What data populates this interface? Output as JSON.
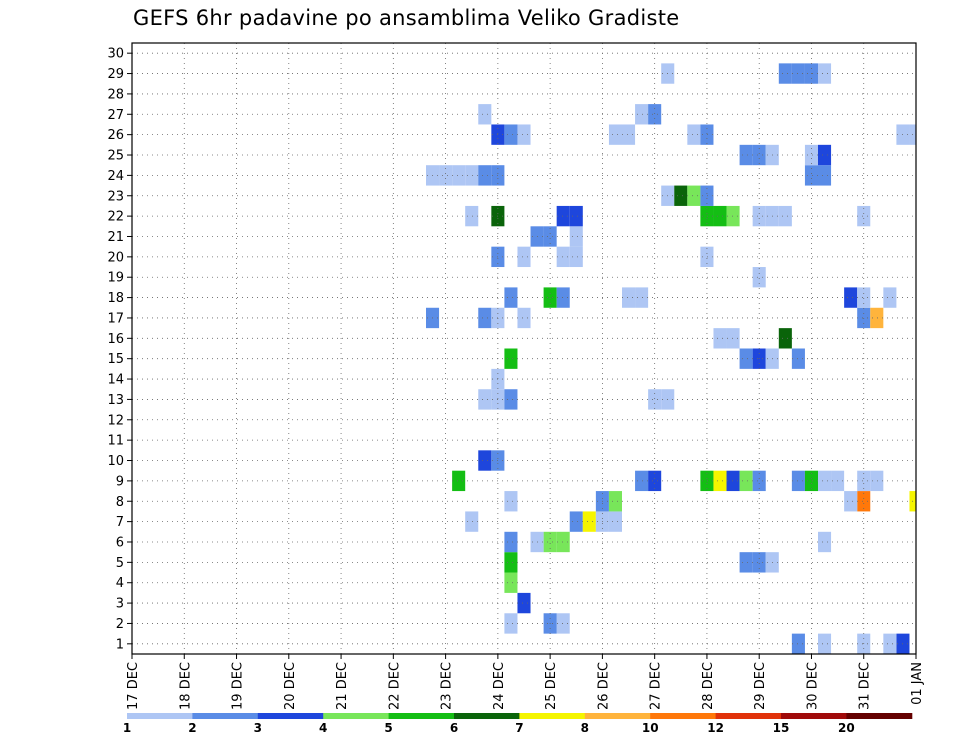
{
  "chart_data": {
    "type": "heatmap",
    "title": "GEFS 6hr padavine po ansamblima Veliko Gradiste",
    "x_tick_labels": [
      "17 DEC",
      "18 DEC",
      "19 DEC",
      "20 DEC",
      "21 DEC",
      "22 DEC",
      "23 DEC",
      "24 DEC",
      "25 DEC",
      "26 DEC",
      "27 DEC",
      "28 DEC",
      "29 DEC",
      "30 DEC",
      "31 DEC",
      "01 JAN"
    ],
    "x_units": "6-hour steps from 17 DEC 00Z (4 per day)",
    "x_range": [
      0,
      60
    ],
    "y_tick_labels": [
      "1",
      "2",
      "3",
      "4",
      "5",
      "6",
      "7",
      "8",
      "9",
      "10",
      "11",
      "12",
      "13",
      "14",
      "15",
      "16",
      "17",
      "18",
      "19",
      "20",
      "21",
      "22",
      "23",
      "24",
      "25",
      "26",
      "27",
      "28",
      "29",
      "30"
    ],
    "y_range": [
      0.5,
      30.5
    ],
    "grid": true,
    "legend_position": "bottom",
    "colorbar": {
      "labels": [
        "1",
        "2",
        "3",
        "4",
        "5",
        "6",
        "7",
        "8",
        "10",
        "12",
        "15",
        "20"
      ],
      "colors": [
        "#aec6f4",
        "#5a8ce6",
        "#1e46dc",
        "#78e65a",
        "#14be14",
        "#0a640a",
        "#f5f500",
        "#ffb43c",
        "#ff780a",
        "#e1320a",
        "#a00a0a",
        "#640000"
      ]
    },
    "cells": [
      [
        59,
        1,
        3
      ],
      [
        58,
        1,
        1
      ],
      [
        56,
        1,
        1
      ],
      [
        53,
        1,
        1
      ],
      [
        51,
        1,
        2
      ],
      [
        33,
        2,
        1
      ],
      [
        32,
        2,
        2
      ],
      [
        29,
        2,
        1
      ],
      [
        30,
        3,
        3
      ],
      [
        29,
        4,
        4
      ],
      [
        29,
        5,
        5
      ],
      [
        48,
        5,
        2
      ],
      [
        47,
        5,
        2
      ],
      [
        49,
        5,
        1
      ],
      [
        29,
        6,
        2
      ],
      [
        32,
        6,
        4
      ],
      [
        33,
        6,
        4
      ],
      [
        31,
        6,
        1
      ],
      [
        53,
        6,
        1
      ],
      [
        26,
        7,
        1
      ],
      [
        34,
        7,
        2
      ],
      [
        35,
        7,
        7
      ],
      [
        36,
        7,
        1
      ],
      [
        37,
        7,
        1
      ],
      [
        29,
        8,
        1
      ],
      [
        36,
        8,
        2
      ],
      [
        37,
        8,
        4
      ],
      [
        56,
        8,
        9
      ],
      [
        55,
        8,
        1
      ],
      [
        60,
        8,
        7
      ],
      [
        25,
        9,
        5
      ],
      [
        39,
        9,
        2
      ],
      [
        40,
        9,
        3
      ],
      [
        44,
        9,
        5
      ],
      [
        45,
        9,
        7
      ],
      [
        46,
        9,
        3
      ],
      [
        47,
        9,
        4
      ],
      [
        48,
        9,
        2
      ],
      [
        51,
        9,
        2
      ],
      [
        52,
        9,
        5
      ],
      [
        53,
        9,
        1
      ],
      [
        54,
        9,
        1
      ],
      [
        56,
        9,
        1
      ],
      [
        57,
        9,
        1
      ],
      [
        27,
        10,
        3
      ],
      [
        28,
        10,
        2
      ],
      [
        27,
        13,
        1
      ],
      [
        28,
        13,
        1
      ],
      [
        29,
        13,
        2
      ],
      [
        40,
        13,
        1
      ],
      [
        41,
        13,
        1
      ],
      [
        28,
        14,
        1
      ],
      [
        29,
        15,
        5
      ],
      [
        47,
        15,
        2
      ],
      [
        48,
        15,
        3
      ],
      [
        49,
        15,
        1
      ],
      [
        51,
        15,
        2
      ],
      [
        45,
        16,
        1
      ],
      [
        46,
        16,
        1
      ],
      [
        50,
        16,
        6
      ],
      [
        23,
        17,
        2
      ],
      [
        27,
        17,
        2
      ],
      [
        28,
        17,
        1
      ],
      [
        30,
        17,
        1
      ],
      [
        56,
        17,
        2
      ],
      [
        57,
        17,
        8
      ],
      [
        29,
        18,
        2
      ],
      [
        32,
        18,
        5
      ],
      [
        33,
        18,
        2
      ],
      [
        38,
        18,
        1
      ],
      [
        39,
        18,
        1
      ],
      [
        55,
        18,
        3
      ],
      [
        56,
        18,
        1
      ],
      [
        58,
        18,
        1
      ],
      [
        48,
        19,
        1
      ],
      [
        28,
        20,
        2
      ],
      [
        30,
        20,
        1
      ],
      [
        33,
        20,
        1
      ],
      [
        34,
        20,
        1
      ],
      [
        44,
        20,
        1
      ],
      [
        31,
        21,
        2
      ],
      [
        32,
        21,
        2
      ],
      [
        34,
        21,
        1
      ],
      [
        26,
        22,
        1
      ],
      [
        28,
        22,
        6
      ],
      [
        33,
        22,
        3
      ],
      [
        34,
        22,
        3
      ],
      [
        44,
        22,
        5
      ],
      [
        45,
        22,
        5
      ],
      [
        46,
        22,
        4
      ],
      [
        48,
        22,
        1
      ],
      [
        49,
        22,
        1
      ],
      [
        50,
        22,
        1
      ],
      [
        56,
        22,
        1
      ],
      [
        41,
        23,
        1
      ],
      [
        42,
        23,
        6
      ],
      [
        43,
        23,
        4
      ],
      [
        44,
        23,
        2
      ],
      [
        23,
        24,
        1
      ],
      [
        24,
        24,
        1
      ],
      [
        25,
        24,
        1
      ],
      [
        26,
        24,
        1
      ],
      [
        27,
        24,
        2
      ],
      [
        28,
        24,
        2
      ],
      [
        52,
        24,
        2
      ],
      [
        53,
        24,
        2
      ],
      [
        47,
        25,
        2
      ],
      [
        48,
        25,
        2
      ],
      [
        49,
        25,
        1
      ],
      [
        52,
        25,
        1
      ],
      [
        53,
        25,
        3
      ],
      [
        28,
        26,
        3
      ],
      [
        29,
        26,
        2
      ],
      [
        30,
        26,
        1
      ],
      [
        37,
        26,
        1
      ],
      [
        38,
        26,
        1
      ],
      [
        43,
        26,
        1
      ],
      [
        44,
        26,
        2
      ],
      [
        59,
        26,
        1
      ],
      [
        60,
        26,
        1
      ],
      [
        27,
        27,
        1
      ],
      [
        39,
        27,
        1
      ],
      [
        40,
        27,
        2
      ],
      [
        41,
        29,
        1
      ],
      [
        50,
        29,
        2
      ],
      [
        51,
        29,
        2
      ],
      [
        52,
        29,
        2
      ],
      [
        53,
        29,
        1
      ]
    ]
  }
}
